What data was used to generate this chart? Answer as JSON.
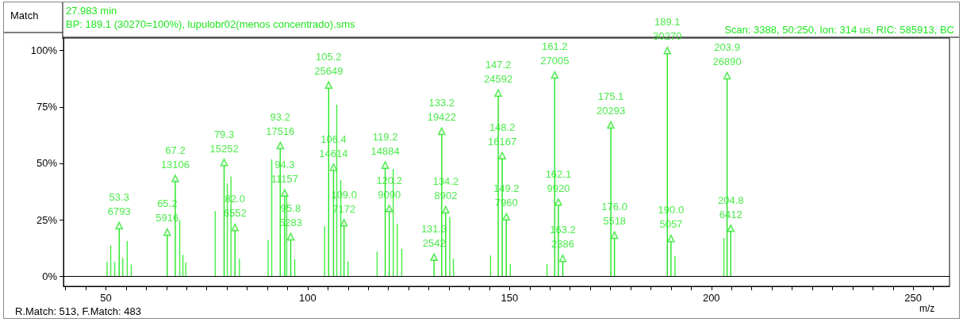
{
  "chart_data": {
    "type": "bar",
    "title": "27.983 min",
    "subtitle": "BP: 189.1 (30270=100%), lupulobr02(menos concentrado).sms",
    "annotations": [
      "Scan: 3388, 50:250, Ion: 314 us, RIC: 585913, BC",
      "Match",
      "R.Match: 513, F.Match: 483"
    ],
    "xlabel": "m/z",
    "series": [
      {
        "type": "lollipop",
        "color": "#22e622",
        "marker": "triangle",
        "x": [
          53.3,
          65.2,
          67.2,
          79.3,
          82.0,
          93.2,
          94.3,
          95.8,
          105.2,
          106.4,
          109.0,
          119.2,
          120.2,
          131.3,
          133.2,
          134.2,
          147.2,
          148.2,
          149.2,
          161.2,
          162.1,
          163.2,
          175.1,
          176.0,
          189.1,
          190.0,
          203.9,
          204.8
        ],
        "values": [
          22.4,
          19.5,
          43.3,
          50.4,
          21.6,
          57.9,
          36.9,
          17.5,
          84.7,
          48.3,
          23.7,
          49.2,
          30.0,
          8.4,
          64.2,
          29.4,
          81.2,
          53.4,
          26.3,
          89.2,
          32.8,
          7.9,
          67.0,
          18.2,
          100,
          16.7,
          88.8,
          21.2
        ],
        "value_labels": [
          "53.3\n6793",
          "65.2\n5916",
          "67.2\n13106",
          "79.3\n15252",
          "82.0\n6552",
          "93.2\n17516",
          "94.3\n11157",
          "95.8\n5283",
          "105.2\n25649",
          "106.4\n14614",
          "109.0\n7172",
          "119.2\n14884",
          "120.2\n9090",
          "131.3\n2542",
          "133.2\n19422",
          "134.2\n8902",
          "147.2\n24592",
          "148.2\n16167",
          "149.2\n7960",
          "161.2\n27005",
          "162.1\n9920",
          "163.2\n2386",
          "175.1\n20293",
          "176.0\n5518",
          "189.1\n30270",
          "190.0\n5057",
          "203.9\n26890",
          "204.8\n6412"
        ]
      },
      {
        "color": "#44ee44",
        "x": [
          50.3,
          51.2,
          52.2,
          54.2,
          55.3,
          56.3,
          68.3,
          69.1,
          69.8,
          77.1,
          80.1,
          81.0,
          83.1,
          90.2,
          91.1,
          94.8,
          96.8,
          104.2,
          107.2,
          108.2,
          110.0,
          117.2,
          121.2,
          122.2,
          123.3,
          135.2,
          136.1,
          145.3,
          150.2,
          159.3,
          191.0,
          203.1
        ],
        "values": [
          6.3,
          13.6,
          6.3,
          8.1,
          15.6,
          5.2,
          24.8,
          9.4,
          6.0,
          28.8,
          41.1,
          44.2,
          7.7,
          16.1,
          51.8,
          35.7,
          7.5,
          22.1,
          76.0,
          42.6,
          6.6,
          10.9,
          47.5,
          23.0,
          12.1,
          26.2,
          7.8,
          9.2,
          5.4,
          5.4,
          8.9,
          16.9
        ]
      }
    ],
    "xlim": [
      39.5,
      259
    ],
    "xticks": [
      {
        "value": 40,
        "label": null
      },
      {
        "value": 45,
        "label": null
      },
      50,
      {
        "value": 55,
        "label": null
      },
      {
        "value": 60,
        "label": null
      },
      {
        "value": 65,
        "label": null
      },
      {
        "value": 70,
        "label": null
      },
      {
        "value": 75,
        "label": null
      },
      {
        "value": 80,
        "label": null
      },
      {
        "value": 85,
        "label": null
      },
      {
        "value": 90,
        "label": null
      },
      {
        "value": 95,
        "label": null
      },
      100,
      {
        "value": 105,
        "label": null
      },
      {
        "value": 110,
        "label": null
      },
      {
        "value": 115,
        "label": null
      },
      {
        "value": 120,
        "label": null
      },
      {
        "value": 125,
        "label": null
      },
      {
        "value": 130,
        "label": null
      },
      {
        "value": 135,
        "label": null
      },
      {
        "value": 140,
        "label": null
      },
      {
        "value": 145,
        "label": null
      },
      150,
      {
        "value": 155,
        "label": null
      },
      {
        "value": 160,
        "label": null
      },
      {
        "value": 165,
        "label": null
      },
      {
        "value": 170,
        "label": null
      },
      {
        "value": 175,
        "label": null
      },
      {
        "value": 180,
        "label": null
      },
      {
        "value": 185,
        "label": null
      },
      {
        "value": 190,
        "label": null
      },
      {
        "value": 195,
        "label": null
      },
      200,
      {
        "value": 205,
        "label": null
      },
      {
        "value": 210,
        "label": null
      },
      {
        "value": 215,
        "label": null
      },
      {
        "value": 220,
        "label": null
      },
      {
        "value": 225,
        "label": null
      },
      {
        "value": 230,
        "label": null
      },
      {
        "value": 235,
        "label": null
      },
      {
        "value": 240,
        "label": null
      },
      {
        "value": 245,
        "label": null
      },
      250,
      {
        "value": 255,
        "label": null
      }
    ],
    "ylim": [
      -4.5,
      105.5
    ],
    "yticks": [
      {
        "value": 0,
        "label": "0%"
      },
      {
        "value": 25,
        "label": "25%"
      },
      {
        "value": 50,
        "label": "50%"
      },
      {
        "value": 75,
        "label": "75%"
      },
      {
        "value": 100,
        "label": "100%"
      }
    ],
    "ref_lines": [
      {
        "axis": "y",
        "value": 0,
        "color": "#000000"
      }
    ],
    "grid": false
  }
}
